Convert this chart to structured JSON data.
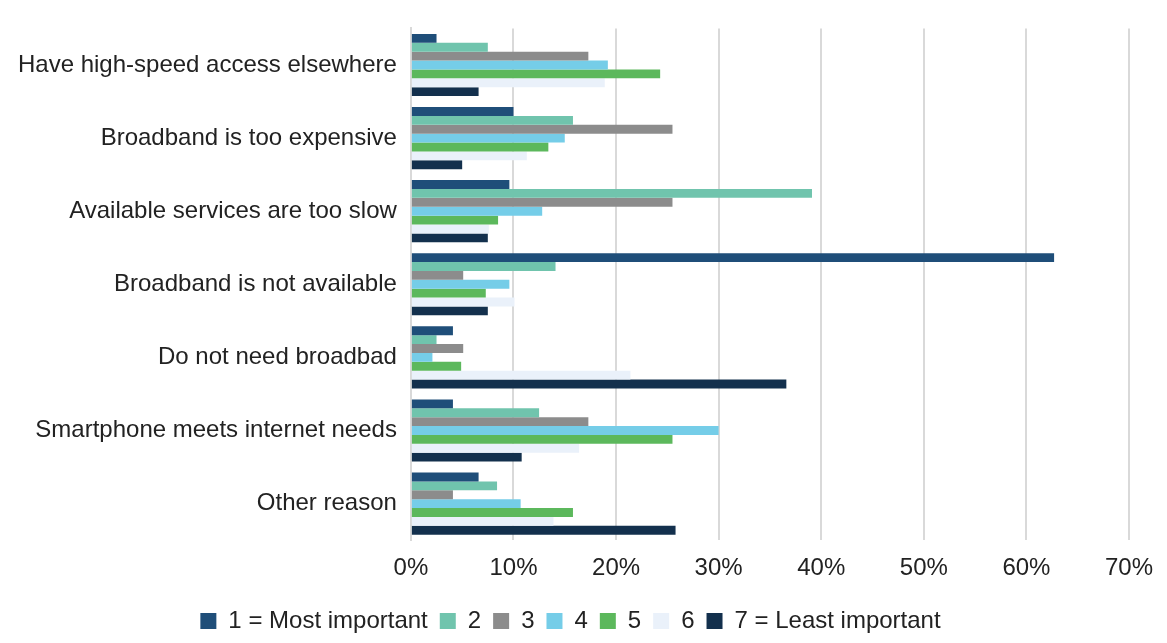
{
  "chart_data": {
    "type": "bar",
    "orientation": "horizontal",
    "categories": [
      "Have high-speed access elsewhere",
      "Broadband is too expensive",
      "Available services are too slow",
      "Broadband is not available",
      "Do not need broadbad",
      "Smartphone meets internet needs",
      "Other reason"
    ],
    "series": [
      {
        "name": "1 = Most important",
        "color": "#1f4e79",
        "values": [
          2.5,
          10,
          9.6,
          62.7,
          4.1,
          4.1,
          6.6
        ]
      },
      {
        "name": "2",
        "color": "#70c4ad",
        "values": [
          7.5,
          15.8,
          39.1,
          14.1,
          2.5,
          12.5,
          8.4
        ]
      },
      {
        "name": "3",
        "color": "#8c8c8c",
        "values": [
          17.3,
          25.5,
          25.5,
          5.1,
          5.1,
          17.3,
          4.1
        ]
      },
      {
        "name": "4",
        "color": "#75cde8",
        "values": [
          19.2,
          15,
          12.8,
          9.6,
          2.1,
          30,
          10.7
        ]
      },
      {
        "name": "5",
        "color": "#5cb85c",
        "values": [
          24.3,
          13.4,
          8.5,
          7.3,
          4.9,
          25.5,
          15.8
        ]
      },
      {
        "name": "6",
        "color": "#eaf1fa",
        "values": [
          18.9,
          11.3,
          7.6,
          10.1,
          21.4,
          16.4,
          13.9
        ]
      },
      {
        "name": "7 = Least important",
        "color": "#13304d",
        "values": [
          6.6,
          5,
          7.5,
          7.5,
          36.6,
          10.8,
          25.8
        ]
      }
    ],
    "xlim": [
      0,
      70
    ],
    "xticks": [
      {
        "value": 0,
        "label": "0%"
      },
      {
        "value": 10,
        "label": "10%"
      },
      {
        "value": 20,
        "label": "20%"
      },
      {
        "value": 30,
        "label": "30%"
      },
      {
        "value": 40,
        "label": "40%"
      },
      {
        "value": 50,
        "label": "50%"
      },
      {
        "value": 60,
        "label": "60%"
      },
      {
        "value": 70,
        "label": "70%"
      }
    ],
    "grid": "x",
    "legend": "bottom"
  }
}
